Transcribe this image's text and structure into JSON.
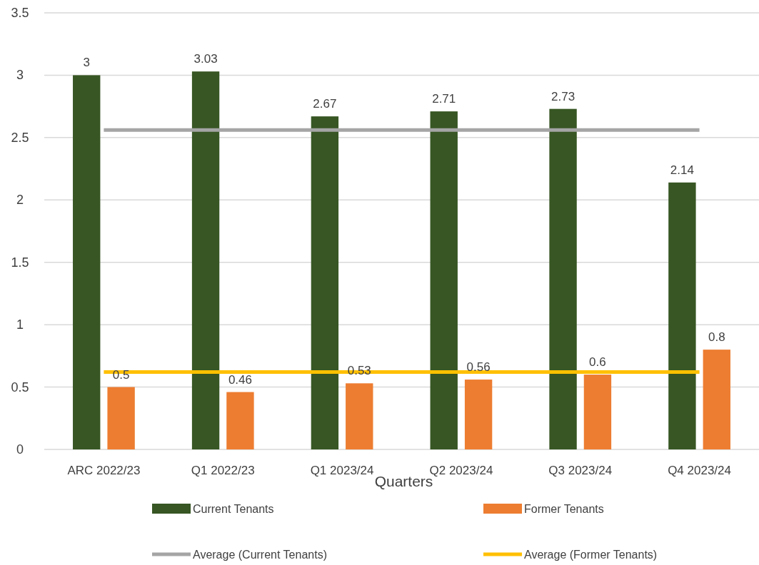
{
  "chart_data": {
    "type": "bar",
    "xlabel": "Quarters",
    "categories": [
      "ARC 2022/23",
      "Q1 2022/23",
      "Q1 2023/24",
      "Q2 2023/24",
      "Q3 2023/24",
      "Q4 2023/24"
    ],
    "series": [
      {
        "name": "Current Tenants",
        "color": "#375623",
        "values": [
          3,
          3.03,
          2.67,
          2.71,
          2.73,
          2.14
        ],
        "value_labels": [
          "3",
          "3.03",
          "2.67",
          "2.71",
          "2.73",
          "2.14"
        ]
      },
      {
        "name": "Former Tenants",
        "color": "#ed7d31",
        "values": [
          0.5,
          0.46,
          0.53,
          0.56,
          0.6,
          0.8
        ],
        "value_labels": [
          "0.5",
          "0.46",
          "0.53",
          "0.56",
          "0.6",
          "0.8"
        ]
      },
      {
        "name": "Average (Current Tenants)",
        "type": "line",
        "color": "#a5a5a5",
        "values": [
          2.56,
          2.56,
          2.56,
          2.56,
          2.56,
          2.56
        ]
      },
      {
        "name": "Average (Former Tenants)",
        "type": "line",
        "color": "#ffc000",
        "values": [
          0.62,
          0.62,
          0.62,
          0.62,
          0.62,
          0.62
        ]
      }
    ],
    "ylim": [
      0,
      3.5
    ],
    "yticks": [
      0,
      0.5,
      1,
      1.5,
      2,
      2.5,
      3,
      3.5
    ],
    "grid": "y",
    "legend": "bottom"
  }
}
